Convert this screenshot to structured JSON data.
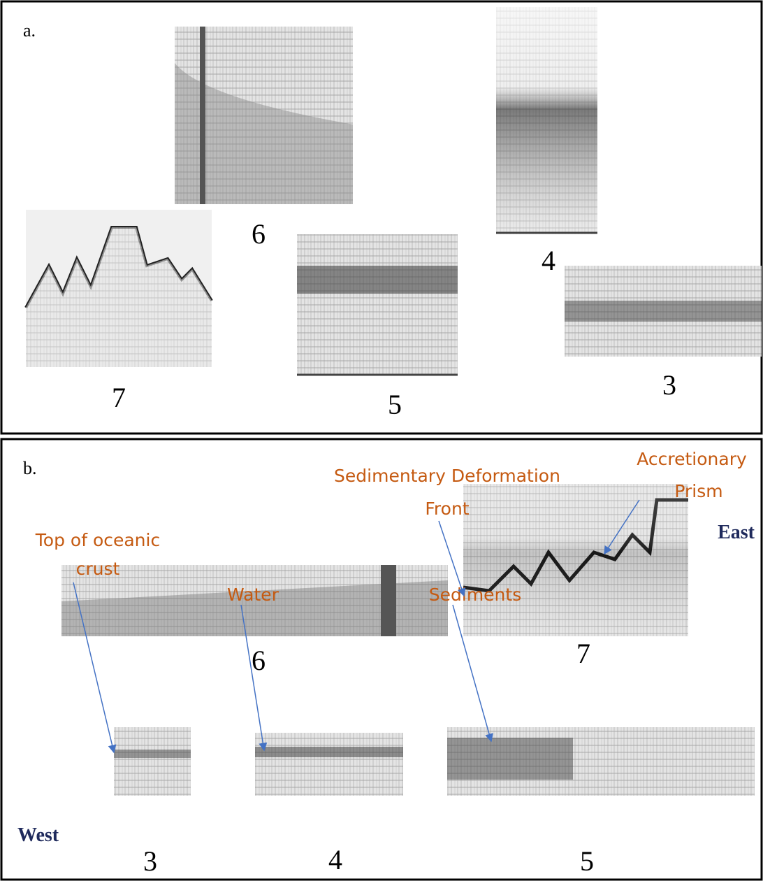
{
  "panel_a": {
    "label": "a.",
    "profiles": [
      "6",
      "4",
      "7",
      "5",
      "3"
    ]
  },
  "panel_b": {
    "label": "b.",
    "profiles": [
      "6",
      "7",
      "3",
      "4",
      "5"
    ],
    "annotations": [
      {
        "lines": [
          "Sedimentary Deformation",
          "Front"
        ]
      },
      {
        "lines": [
          "Accretionary",
          "Prism"
        ]
      },
      {
        "lines": [
          "Top of oceanic",
          "crust"
        ]
      },
      {
        "lines": [
          "Water"
        ]
      },
      {
        "lines": [
          "Sediments"
        ]
      }
    ],
    "east": "East",
    "west": "West"
  }
}
